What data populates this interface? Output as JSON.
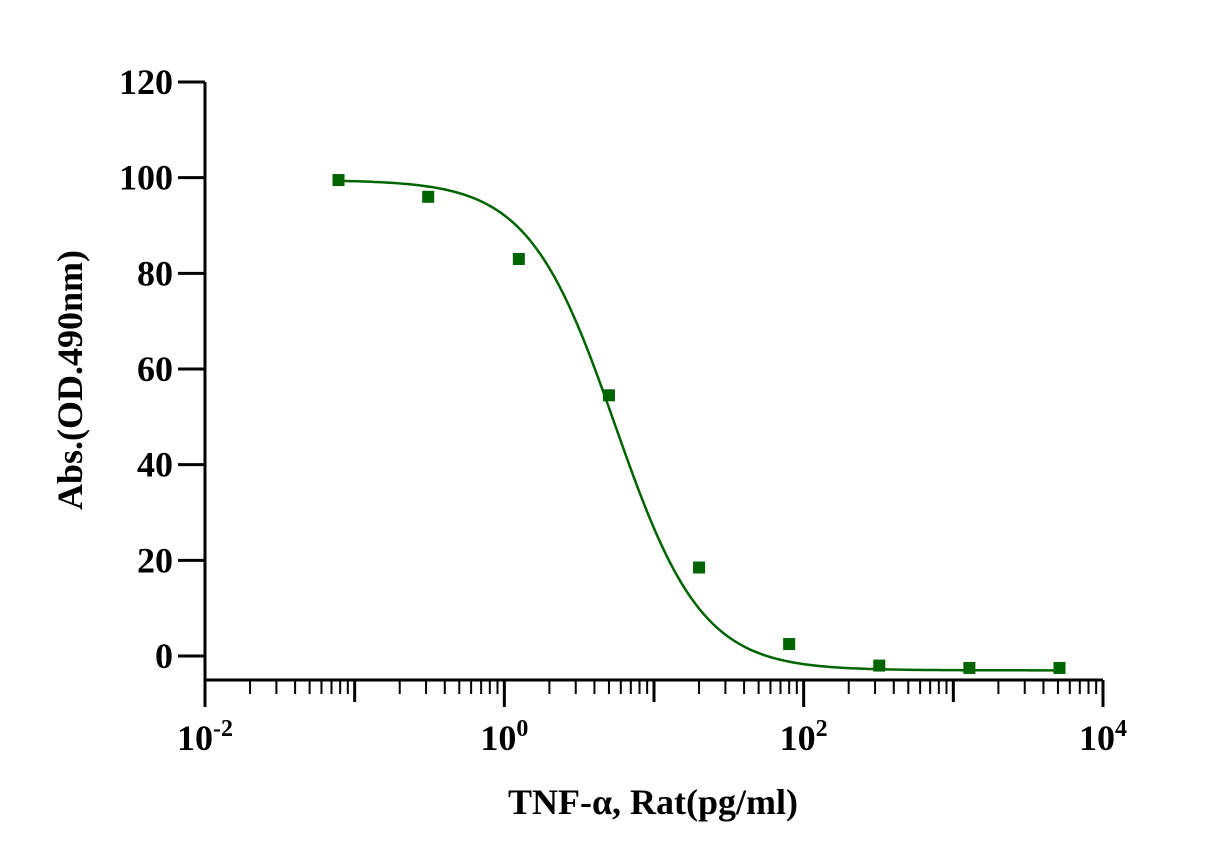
{
  "chart_data": {
    "type": "scatter",
    "title": "",
    "xlabel": "TNF-α, Rat(pg/ml)",
    "ylabel": "Abs.(OD.490nm)",
    "x_scale": "log",
    "xlim": [
      0.01,
      10000
    ],
    "ylim": [
      -5,
      120
    ],
    "x_ticks": [
      {
        "base": "10",
        "exp": "-2"
      },
      {
        "base": "10",
        "exp": "0"
      },
      {
        "base": "10",
        "exp": "2"
      },
      {
        "base": "10",
        "exp": "4"
      }
    ],
    "y_ticks": [
      "0",
      "20",
      "40",
      "60",
      "80",
      "100",
      "120"
    ],
    "series": [
      {
        "color": "#006400",
        "marker": "square",
        "points": [
          {
            "x": 0.078,
            "y": 99.5
          },
          {
            "x": 0.31,
            "y": 96.0
          },
          {
            "x": 1.25,
            "y": 83.0
          },
          {
            "x": 5.0,
            "y": 54.5
          },
          {
            "x": 20.0,
            "y": 18.5
          },
          {
            "x": 80.0,
            "y": 2.5
          },
          {
            "x": 320.0,
            "y": -2.0
          },
          {
            "x": 1280.0,
            "y": -2.5
          },
          {
            "x": 5120.0,
            "y": -2.5
          }
        ],
        "fit": {
          "model": "4PL",
          "top": 99.5,
          "bottom": -3.0,
          "ec50": 5.5,
          "hill": 1.5
        }
      }
    ],
    "grid": false,
    "legend": "none"
  }
}
